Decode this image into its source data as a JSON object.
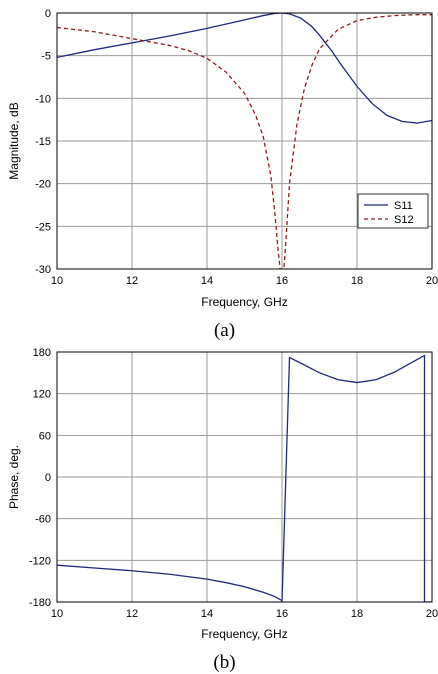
{
  "chart_data": [
    {
      "type": "line",
      "caption": "(a)",
      "xlabel": "Frequency, GHz",
      "ylabel": "Magnitude, dB",
      "xlim": [
        10,
        20
      ],
      "ylim": [
        -30,
        0
      ],
      "xticks": [
        10,
        12,
        14,
        16,
        18,
        20
      ],
      "yticks": [
        0,
        -5,
        -10,
        -15,
        -20,
        -25,
        -30
      ],
      "grid": true,
      "legend": "lower-right",
      "series": [
        {
          "name": "S11",
          "style": "solid",
          "color": "#1f2a7a",
          "x": [
            10,
            11,
            12,
            13,
            14,
            14.5,
            15,
            15.5,
            15.8,
            16,
            16.2,
            16.5,
            16.8,
            17,
            17.3,
            17.6,
            18,
            18.4,
            18.8,
            19.2,
            19.6,
            20
          ],
          "y": [
            -5.2,
            -4.3,
            -3.5,
            -2.7,
            -1.8,
            -1.3,
            -0.8,
            -0.3,
            -0.05,
            0,
            -0.1,
            -0.6,
            -1.6,
            -2.6,
            -4.3,
            -6.2,
            -8.6,
            -10.6,
            -12.0,
            -12.7,
            -12.9,
            -12.6
          ]
        },
        {
          "name": "S12",
          "style": "dashed",
          "color": "#8b1a1a",
          "x": [
            10,
            11,
            12,
            13,
            13.5,
            14,
            14.5,
            15,
            15.3,
            15.5,
            15.7,
            15.8,
            15.9,
            15.95,
            16.05,
            16.1,
            16.2,
            16.4,
            16.6,
            16.8,
            17,
            17.5,
            18,
            18.5,
            19,
            19.5,
            20
          ],
          "y": [
            -1.7,
            -2.2,
            -3.0,
            -3.8,
            -4.4,
            -5.3,
            -6.9,
            -9.4,
            -12.0,
            -14.5,
            -19.0,
            -23.0,
            -28.0,
            -30,
            -30,
            -27.0,
            -20.0,
            -13.0,
            -8.8,
            -6.1,
            -4.2,
            -1.9,
            -0.9,
            -0.5,
            -0.3,
            -0.2,
            -0.2
          ]
        }
      ]
    },
    {
      "type": "line",
      "caption": "(b)",
      "xlabel": "Frequency, GHz",
      "ylabel": "Phase, deg.",
      "xlim": [
        10,
        20
      ],
      "ylim": [
        -180,
        180
      ],
      "xticks": [
        10,
        12,
        14,
        16,
        18,
        20
      ],
      "yticks": [
        180,
        120,
        60,
        0,
        -60,
        -120,
        -180
      ],
      "grid": true,
      "series": [
        {
          "name": "",
          "style": "solid",
          "color": "#1f2a7a",
          "x": [
            10,
            11,
            12,
            13,
            14,
            14.5,
            15,
            15.5,
            15.8,
            16,
            16.0,
            16.2,
            16.5,
            17,
            17.5,
            18,
            18.5,
            19,
            19.5,
            19.8,
            19.8,
            20
          ],
          "y": [
            -127,
            -131,
            -135,
            -140,
            -147,
            -152,
            -158,
            -166,
            -172,
            -178,
            -180,
            172,
            164,
            150,
            140,
            136,
            140,
            151,
            166,
            175,
            -180,
            -180
          ]
        }
      ]
    }
  ]
}
